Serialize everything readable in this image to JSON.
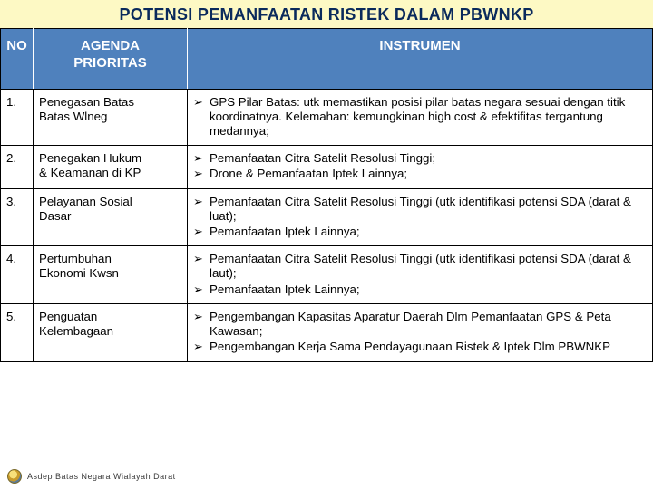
{
  "title": "POTENSI PEMANFAATAN RISTEK DALAM PBWNKP",
  "colors": {
    "title_bg": "#fdf9c4",
    "title_text": "#0a2a5c",
    "header_bg": "#4f81bd",
    "header_text": "#ffffff",
    "cell_text": "#000000",
    "border": "#000000"
  },
  "columns": {
    "no_header": "NO",
    "agenda_header_l1": "AGENDA",
    "agenda_header_l2": "PRIORITAS",
    "instrumen_header": "INSTRUMEN"
  },
  "rows": [
    {
      "no": "1.",
      "agenda_l1": "Penegasan Batas",
      "agenda_l2": "Batas Wlneg",
      "instrumen": [
        "GPS Pilar Batas: utk memastikan posisi pilar batas negara sesuai dengan titik koordinatnya. Kelemahan: kemungkinan high cost & efektifitas tergantung  medannya;"
      ]
    },
    {
      "no": "2.",
      "agenda_l1": "Penegakan Hukum",
      "agenda_l2": "& Keamanan di KP",
      "instrumen": [
        "Pemanfaatan Citra Satelit Resolusi Tinggi;",
        "Drone & Pemanfaatan Iptek Lainnya;"
      ]
    },
    {
      "no": "3.",
      "agenda_l1": "Pelayanan Sosial",
      "agenda_l2": "Dasar",
      "instrumen": [
        "Pemanfaatan Citra Satelit Resolusi Tinggi (utk identifikasi potensi SDA (darat & luat);",
        "Pemanfaatan Iptek Lainnya;"
      ]
    },
    {
      "no": "4.",
      "agenda_l1": "Pertumbuhan",
      "agenda_l2": "Ekonomi Kwsn",
      "instrumen": [
        "Pemanfaatan Citra Satelit Resolusi Tinggi (utk identifikasi potensi SDA (darat & laut);",
        "Pemanfaatan Iptek Lainnya;"
      ]
    },
    {
      "no": "5.",
      "agenda_l1": "Penguatan",
      "agenda_l2": "Kelembagaan",
      "instrumen": [
        "Pengembangan Kapasitas Aparatur Daerah Dlm Pemanfaatan GPS & Peta Kawasan;",
        "Pengembangan Kerja Sama Pendayagunaan Ristek & Iptek Dlm PBWNKP"
      ]
    }
  ],
  "footer": "Asdep Batas Negara Wialayah Darat"
}
